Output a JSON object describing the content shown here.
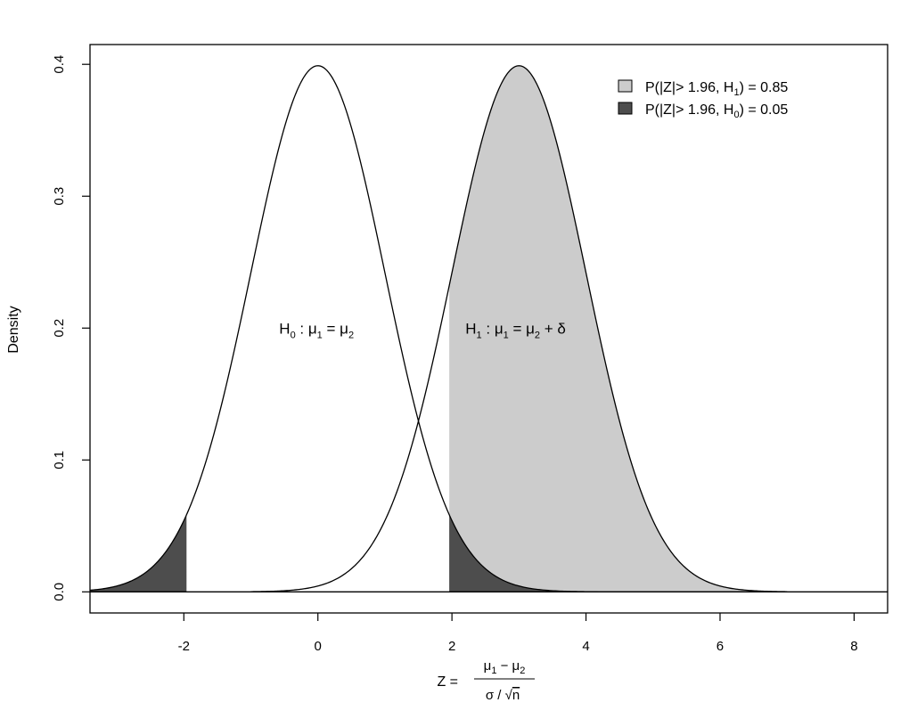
{
  "chart_data": {
    "type": "area",
    "title": "",
    "xlabel": "Z =",
    "xlabel_fraction": {
      "numerator": {
        "mu": "μ",
        "sub1": "1",
        "minus": " − ",
        "sub2": "2"
      },
      "denominator": {
        "sigma": "σ",
        "slash": " / ",
        "sqrt_sign": "√",
        "n": "n"
      }
    },
    "ylabel": "Density",
    "xlim": [
      -3.4,
      8.5
    ],
    "ylim": [
      -0.016,
      0.415
    ],
    "x_ticks": [
      -2,
      0,
      2,
      4,
      6,
      8
    ],
    "x_tick_labels": [
      "-2",
      "0",
      "2",
      "4",
      "6",
      "8"
    ],
    "y_ticks": [
      0.0,
      0.1,
      0.2,
      0.3,
      0.4
    ],
    "y_tick_labels": [
      "0.0",
      "0.1",
      "0.2",
      "0.3",
      "0.4"
    ],
    "baseline": 0,
    "critical_value": 1.96,
    "series": [
      {
        "name": "H0",
        "distribution": "normal",
        "mean": 0,
        "sd": 1,
        "x_range": [
          -3.4,
          7.0
        ]
      },
      {
        "name": "H1",
        "distribution": "normal",
        "mean": 3,
        "sd": 1,
        "x_range": [
          -1.0,
          7.0
        ]
      }
    ],
    "shaded_regions": [
      {
        "curve": "H1",
        "from": 1.96,
        "to": 7.0,
        "color": "#cccccc"
      },
      {
        "curve": "H0",
        "from": -3.4,
        "to": -1.96,
        "color": "#4d4d4d"
      },
      {
        "curve": "H0",
        "from": 1.96,
        "to": 4.1,
        "color": "#4d4d4d"
      }
    ],
    "legend": {
      "position": "top-right",
      "entries": [
        {
          "color": "#cccccc",
          "pre": "P(|Z|> 1.96, H",
          "sub": "1",
          "post": ") = 0.85"
        },
        {
          "color": "#4d4d4d",
          "pre": "P(|Z|> 1.96, H",
          "sub": "0",
          "post": ") = 0.05"
        }
      ]
    },
    "annotations": [
      {
        "at_x": -0.02,
        "at_y": 0.2,
        "H": "H",
        "Hsub": "0",
        "colon": " :  ",
        "mu1": "μ",
        "mu1sub": "1",
        "eq": " = ",
        "mu2": "μ",
        "mu2sub": "2",
        "tail": ""
      },
      {
        "at_x": 2.95,
        "at_y": 0.2,
        "H": "H",
        "Hsub": "1",
        "colon": " :  ",
        "mu1": "μ",
        "mu1sub": "1",
        "eq": " = ",
        "mu2": "μ",
        "mu2sub": "2",
        "tail": " + δ"
      }
    ],
    "colors": {
      "light_fill": "#cccccc",
      "dark_fill": "#4d4d4d",
      "line": "#000000"
    }
  }
}
